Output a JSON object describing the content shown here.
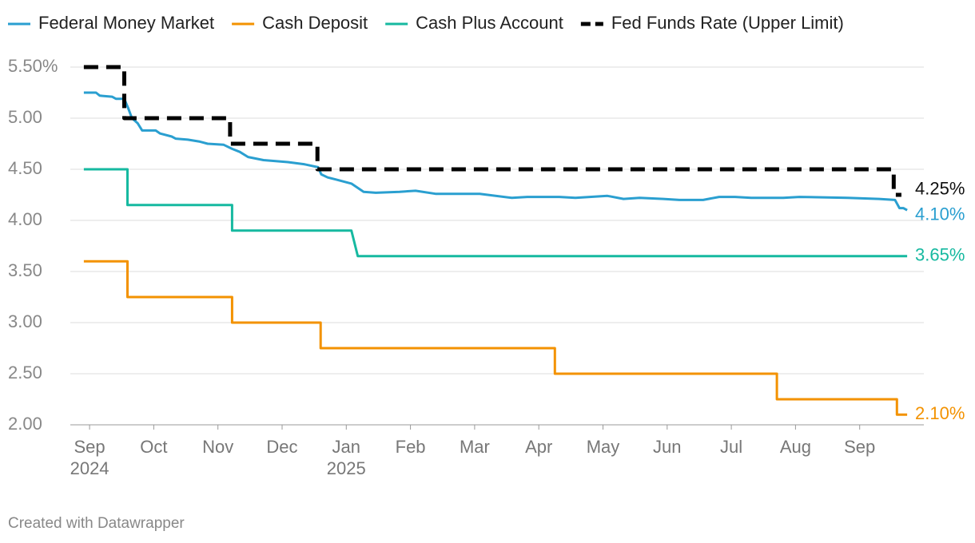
{
  "chart_data": {
    "type": "line",
    "xlim": [
      -0.3,
      13.0
    ],
    "xticks": [
      {
        "value": 0,
        "label": "Sep\n2024"
      },
      {
        "value": 1,
        "label": "Oct"
      },
      {
        "value": 2,
        "label": "Nov"
      },
      {
        "value": 3,
        "label": "Dec"
      },
      {
        "value": 4,
        "label": "Jan\n2025"
      },
      {
        "value": 5,
        "label": "Feb"
      },
      {
        "value": 6,
        "label": "Mar"
      },
      {
        "value": 7,
        "label": "Apr"
      },
      {
        "value": 8,
        "label": "May"
      },
      {
        "value": 9,
        "label": "Jun"
      },
      {
        "value": 10,
        "label": "Jul"
      },
      {
        "value": 11,
        "label": "Aug"
      },
      {
        "value": 12,
        "label": "Sep"
      }
    ],
    "ylim": [
      2.0,
      5.5
    ],
    "yticks": [
      {
        "value": 2.0,
        "label": "2.00"
      },
      {
        "value": 2.5,
        "label": "2.50"
      },
      {
        "value": 3.0,
        "label": "3.00"
      },
      {
        "value": 3.5,
        "label": "3.50"
      },
      {
        "value": 4.0,
        "label": "4.00"
      },
      {
        "value": 4.5,
        "label": "4.50"
      },
      {
        "value": 5.0,
        "label": "5.00"
      },
      {
        "value": 5.5,
        "label": "5.50%"
      }
    ],
    "grid": true,
    "series": [
      {
        "name": "Federal Money Market",
        "color": "#2a9fd0",
        "dashed": false,
        "x": [
          -0.09,
          0.1,
          0.16,
          0.35,
          0.41,
          0.54,
          0.6,
          0.66,
          0.75,
          0.82,
          1.03,
          1.1,
          1.28,
          1.34,
          1.53,
          1.72,
          1.84,
          2.09,
          2.22,
          2.34,
          2.47,
          2.71,
          3.09,
          3.34,
          3.56,
          3.61,
          3.71,
          3.84,
          4.08,
          4.27,
          4.46,
          4.83,
          5.08,
          5.39,
          5.7,
          6.08,
          6.58,
          6.82,
          7.32,
          7.57,
          8.07,
          8.32,
          8.57,
          8.94,
          9.19,
          9.56,
          9.81,
          10.06,
          10.31,
          10.81,
          11.06,
          11.81,
          12.3,
          12.55,
          12.62,
          12.68,
          12.74
        ],
        "values": [
          5.25,
          5.25,
          5.22,
          5.21,
          5.19,
          5.19,
          5.1,
          5.0,
          4.95,
          4.88,
          4.88,
          4.85,
          4.82,
          4.8,
          4.79,
          4.77,
          4.75,
          4.74,
          4.7,
          4.67,
          4.62,
          4.59,
          4.57,
          4.55,
          4.52,
          4.45,
          4.42,
          4.4,
          4.36,
          4.28,
          4.27,
          4.28,
          4.29,
          4.26,
          4.26,
          4.26,
          4.22,
          4.23,
          4.23,
          4.22,
          4.24,
          4.21,
          4.22,
          4.21,
          4.2,
          4.2,
          4.23,
          4.23,
          4.22,
          4.22,
          4.23,
          4.22,
          4.21,
          4.2,
          4.12,
          4.12,
          4.1
        ],
        "end_label": "4.10%"
      },
      {
        "name": "Cash Deposit",
        "color": "#f39200",
        "dashed": false,
        "x": [
          -0.09,
          0.59,
          0.59,
          2.22,
          2.22,
          3.6,
          3.6,
          7.25,
          7.25,
          10.71,
          10.71,
          12.58,
          12.58,
          12.74
        ],
        "values": [
          3.6,
          3.6,
          3.25,
          3.25,
          3.0,
          3.0,
          2.75,
          2.75,
          2.5,
          2.5,
          2.25,
          2.25,
          2.1,
          2.1
        ],
        "end_label": "2.10%"
      },
      {
        "name": "Cash Plus Account",
        "color": "#16b9a0",
        "dashed": false,
        "x": [
          -0.09,
          0.59,
          0.59,
          2.22,
          2.22,
          4.08,
          4.18,
          12.74
        ],
        "values": [
          4.5,
          4.5,
          4.15,
          4.15,
          3.9,
          3.9,
          3.65,
          3.65
        ],
        "end_label": "3.65%"
      },
      {
        "name": "Fed Funds Rate (Upper Limit)",
        "color": "#000000",
        "dashed": true,
        "x": [
          -0.09,
          0.54,
          0.54,
          2.19,
          2.19,
          3.55,
          3.55,
          12.53,
          12.53,
          12.65
        ],
        "values": [
          5.5,
          5.5,
          5.0,
          5.0,
          4.75,
          4.75,
          4.5,
          4.5,
          4.25,
          4.25
        ],
        "end_label": "4.25%"
      }
    ],
    "footer": "Created with Datawrapper"
  }
}
